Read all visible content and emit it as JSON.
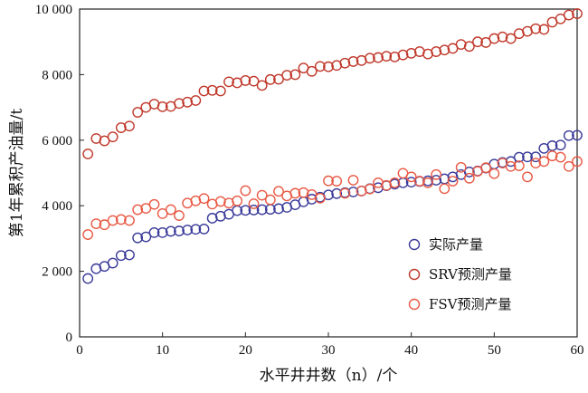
{
  "chart_data": {
    "type": "scatter",
    "xlabel": "水平井井数（n）/个",
    "ylabel": "第1年累积产油量/t",
    "xlim": [
      0,
      60
    ],
    "ylim": [
      0,
      10000
    ],
    "x_ticks": [
      0,
      10,
      20,
      30,
      40,
      50,
      60
    ],
    "y_ticks": [
      0,
      2000,
      4000,
      6000,
      8000,
      10000
    ],
    "x_tick_labels": [
      "0",
      "10",
      "20",
      "30",
      "40",
      "50",
      "60"
    ],
    "y_tick_labels": [
      "0",
      "2 000",
      "4 000",
      "6 000",
      "8 000",
      "10 000"
    ],
    "grid": false,
    "legend_position": "right",
    "series": [
      {
        "name": "实际产量",
        "color": "#3b3b9a",
        "marker": "circle-open",
        "x": [
          1,
          2,
          3,
          4,
          5,
          6,
          7,
          8,
          9,
          10,
          11,
          12,
          13,
          14,
          15,
          16,
          17,
          18,
          19,
          20,
          21,
          22,
          23,
          24,
          25,
          26,
          27,
          28,
          29,
          30,
          31,
          32,
          33,
          34,
          35,
          36,
          37,
          38,
          39,
          40,
          41,
          42,
          43,
          44,
          45,
          46,
          47,
          48,
          49,
          50,
          51,
          52,
          53,
          54,
          55,
          56,
          57,
          58,
          59,
          60
        ],
        "y": [
          1780,
          2080,
          2150,
          2250,
          2480,
          2500,
          3020,
          3050,
          3180,
          3180,
          3220,
          3230,
          3260,
          3280,
          3290,
          3620,
          3680,
          3740,
          3850,
          3860,
          3870,
          3880,
          3890,
          3910,
          3950,
          4030,
          4120,
          4200,
          4260,
          4330,
          4370,
          4400,
          4420,
          4450,
          4520,
          4550,
          4610,
          4660,
          4700,
          4720,
          4740,
          4760,
          4780,
          4820,
          4880,
          4950,
          5030,
          5060,
          5150,
          5270,
          5320,
          5350,
          5480,
          5490,
          5490,
          5750,
          5830,
          5850,
          6140,
          6150
        ]
      },
      {
        "name": "SRV预测产量",
        "color": "#c0392b",
        "marker": "circle-open",
        "x": [
          1,
          2,
          3,
          4,
          5,
          6,
          7,
          8,
          9,
          10,
          11,
          12,
          13,
          14,
          15,
          16,
          17,
          18,
          19,
          20,
          21,
          22,
          23,
          24,
          25,
          26,
          27,
          28,
          29,
          30,
          31,
          32,
          33,
          34,
          35,
          36,
          37,
          38,
          39,
          40,
          41,
          42,
          43,
          44,
          45,
          46,
          47,
          48,
          49,
          50,
          51,
          52,
          53,
          54,
          55,
          56,
          57,
          58,
          59,
          60
        ],
        "y": [
          5580,
          6050,
          5980,
          6100,
          6380,
          6430,
          6850,
          7000,
          7100,
          7020,
          7030,
          7120,
          7160,
          7210,
          7500,
          7520,
          7500,
          7780,
          7750,
          7820,
          7800,
          7670,
          7850,
          7860,
          7980,
          8000,
          8200,
          8100,
          8250,
          8240,
          8280,
          8350,
          8400,
          8430,
          8500,
          8520,
          8560,
          8540,
          8600,
          8650,
          8700,
          8630,
          8700,
          8750,
          8800,
          8920,
          8860,
          9000,
          8980,
          9100,
          9150,
          9100,
          9250,
          9320,
          9400,
          9380,
          9600,
          9700,
          9820,
          9860
        ]
      },
      {
        "name": "FSV预测产量",
        "color": "#e85a45",
        "marker": "circle-open",
        "x": [
          1,
          2,
          3,
          4,
          5,
          6,
          7,
          8,
          9,
          10,
          11,
          12,
          13,
          14,
          15,
          16,
          17,
          18,
          19,
          20,
          21,
          22,
          23,
          24,
          25,
          26,
          27,
          28,
          29,
          30,
          31,
          32,
          33,
          34,
          35,
          36,
          37,
          38,
          39,
          40,
          41,
          42,
          43,
          44,
          45,
          46,
          47,
          48,
          49,
          50,
          51,
          52,
          53,
          54,
          55,
          56,
          57,
          58,
          59,
          60
        ],
        "y": [
          3120,
          3450,
          3420,
          3550,
          3580,
          3550,
          3880,
          3920,
          4040,
          3760,
          3880,
          3700,
          4080,
          4150,
          4220,
          4050,
          4130,
          4080,
          4150,
          4460,
          4060,
          4320,
          4180,
          4440,
          4300,
          4380,
          4400,
          4340,
          4230,
          4760,
          4750,
          4380,
          4780,
          4450,
          4510,
          4700,
          4620,
          4700,
          4990,
          4880,
          4750,
          4700,
          4950,
          4520,
          4750,
          5170,
          4840,
          5050,
          5160,
          4980,
          5300,
          5200,
          5220,
          4880,
          5300,
          5350,
          5520,
          5480,
          5200,
          5350
        ]
      }
    ]
  }
}
